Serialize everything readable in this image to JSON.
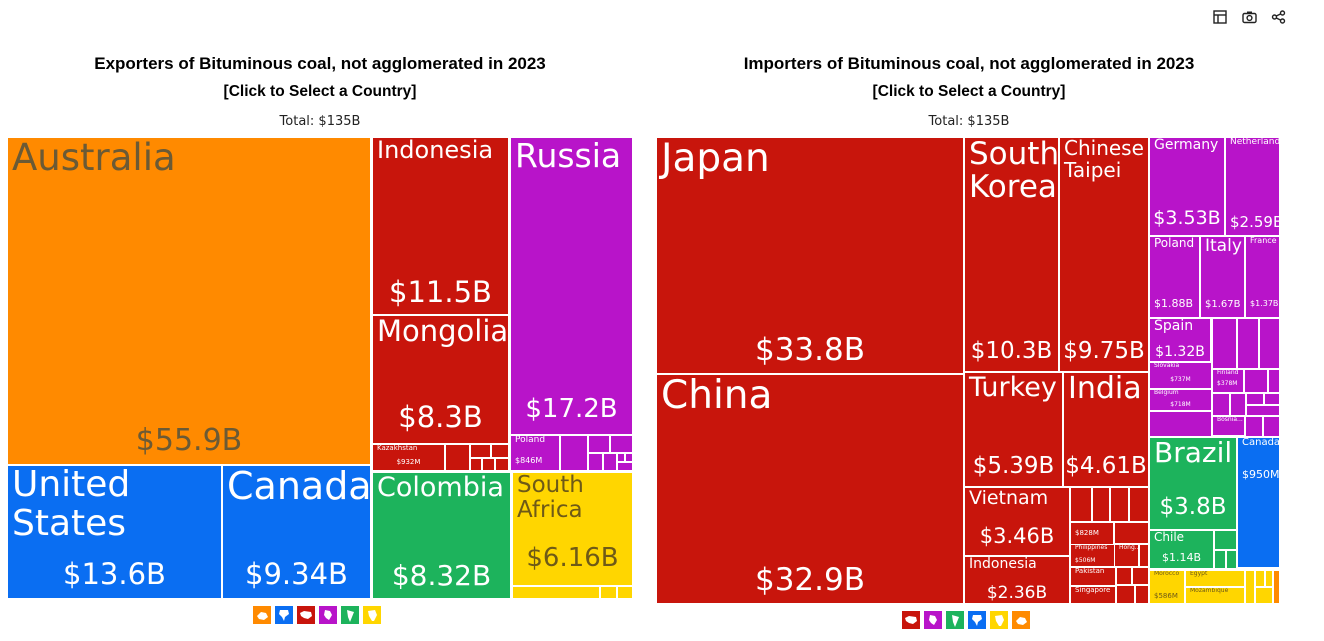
{
  "toolbar": {
    "icons": [
      "table-icon",
      "camera-icon",
      "share-icon"
    ]
  },
  "charts": {
    "left": {
      "title": "Exporters of Bituminous coal, not agglomerated in 2023",
      "subtitle": "[Click to Select a Country]",
      "total": "Total: $135B"
    },
    "right": {
      "title": "Importers of Bituminous coal, not agglomerated in 2023",
      "subtitle": "[Click to Select a Country]",
      "total": "Total: $135B"
    }
  },
  "colors": {
    "oceania": "#ff8a00",
    "north_america": "#0a6ef2",
    "asia": "#c8150c",
    "europe": "#b814c9",
    "south_america": "#1db35c",
    "africa": "#ffd600"
  },
  "legend_icons": {
    "left": [
      "oceania-icon",
      "north-america-icon",
      "asia-icon",
      "europe-icon",
      "south-america-icon",
      "africa-icon"
    ],
    "right": [
      "asia-icon",
      "europe-icon",
      "south-america-icon",
      "north-america-icon",
      "africa-icon",
      "oceania-icon"
    ]
  },
  "chart_data": [
    {
      "type": "treemap",
      "title": "Exporters of Bituminous coal, not agglomerated in 2023",
      "total": "$135B",
      "items": [
        {
          "name": "Australia",
          "value": "$55.9B",
          "region": "oceania"
        },
        {
          "name": "United States",
          "value": "$13.6B",
          "region": "north_america"
        },
        {
          "name": "Canada",
          "value": "$9.34B",
          "region": "north_america"
        },
        {
          "name": "Indonesia",
          "value": "$11.5B",
          "region": "asia"
        },
        {
          "name": "Mongolia",
          "value": "$8.3B",
          "region": "asia"
        },
        {
          "name": "Kazakhstan",
          "value": "$932M",
          "region": "asia"
        },
        {
          "name": "Russia",
          "value": "$17.2B",
          "region": "europe"
        },
        {
          "name": "Poland",
          "value": "$846M",
          "region": "europe"
        },
        {
          "name": "Colombia",
          "value": "$8.32B",
          "region": "south_america"
        },
        {
          "name": "South Africa",
          "value": "$6.16B",
          "region": "africa"
        }
      ]
    },
    {
      "type": "treemap",
      "title": "Importers of Bituminous coal, not agglomerated in 2023",
      "total": "$135B",
      "items": [
        {
          "name": "Japan",
          "value": "$33.8B",
          "region": "asia"
        },
        {
          "name": "China",
          "value": "$32.9B",
          "region": "asia"
        },
        {
          "name": "South Korea",
          "value": "$10.3B",
          "region": "asia"
        },
        {
          "name": "Chinese Taipei",
          "value": "$9.75B",
          "region": "asia"
        },
        {
          "name": "Turkey",
          "value": "$5.39B",
          "region": "asia"
        },
        {
          "name": "India",
          "value": "$4.61B",
          "region": "asia"
        },
        {
          "name": "Vietnam",
          "value": "$3.46B",
          "region": "asia"
        },
        {
          "name": "Indonesia",
          "value": "$2.36B",
          "region": "asia"
        },
        {
          "name": "",
          "value": "$828M",
          "region": "asia"
        },
        {
          "name": "Philippines",
          "value": "$506M",
          "region": "asia"
        },
        {
          "name": "Hong...",
          "value": "",
          "region": "asia"
        },
        {
          "name": "Pakistan",
          "value": "",
          "region": "asia"
        },
        {
          "name": "Singapore",
          "value": "",
          "region": "asia"
        },
        {
          "name": "Germany",
          "value": "$3.53B",
          "region": "europe"
        },
        {
          "name": "Netherlands",
          "value": "$2.59B",
          "region": "europe"
        },
        {
          "name": "Poland",
          "value": "$1.88B",
          "region": "europe"
        },
        {
          "name": "Italy",
          "value": "$1.67B",
          "region": "europe"
        },
        {
          "name": "France",
          "value": "$1.37B",
          "region": "europe"
        },
        {
          "name": "Spain",
          "value": "$1.32B",
          "region": "europe"
        },
        {
          "name": "Slovakia",
          "value": "$737M",
          "region": "europe"
        },
        {
          "name": "Finland",
          "value": "$378M",
          "region": "europe"
        },
        {
          "name": "Belgium",
          "value": "$718M",
          "region": "europe"
        },
        {
          "name": "Bosnia...",
          "value": "",
          "region": "europe"
        },
        {
          "name": "Brazil",
          "value": "$3.8B",
          "region": "south_america"
        },
        {
          "name": "Chile",
          "value": "$1.14B",
          "region": "south_america"
        },
        {
          "name": "Canada",
          "value": "$950M",
          "region": "north_america"
        },
        {
          "name": "Morocco",
          "value": "$586M",
          "region": "africa"
        },
        {
          "name": "Egypt",
          "value": "",
          "region": "africa"
        },
        {
          "name": "Mozambique",
          "value": "",
          "region": "africa"
        }
      ]
    }
  ]
}
